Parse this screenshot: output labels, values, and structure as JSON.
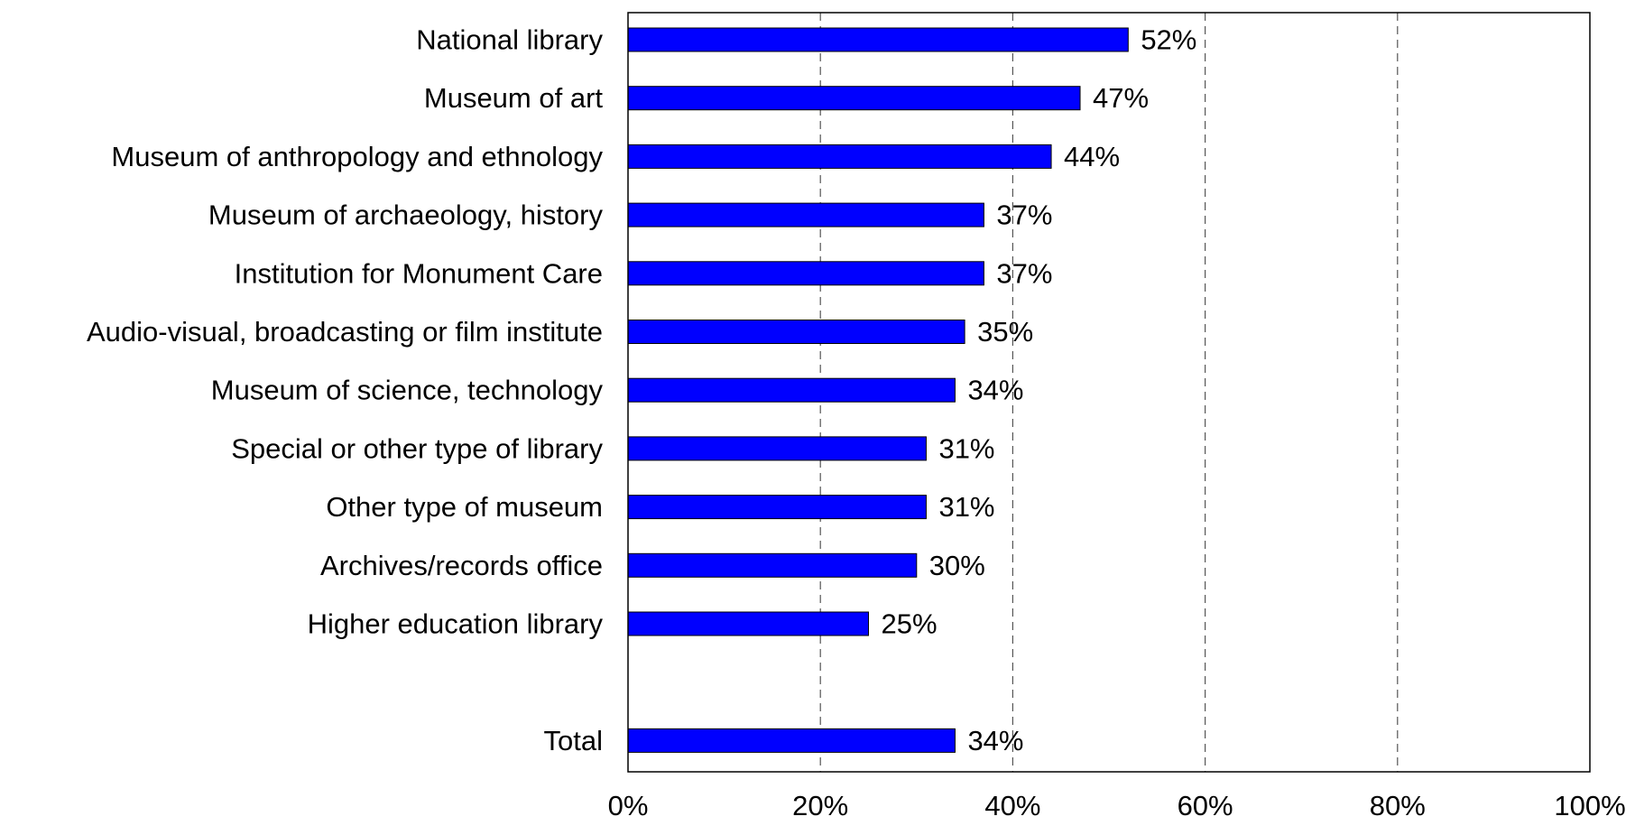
{
  "chart_data": {
    "type": "bar",
    "orientation": "horizontal",
    "categories": [
      "National library",
      "Museum of art",
      "Museum of anthropology and ethnology",
      "Museum of archaeology, history",
      "Institution for Monument Care",
      "Audio-visual, broadcasting or film institute",
      "Museum of science, technology",
      "Special or other type of library",
      "Other type of museum",
      "Archives/records office",
      "Higher education library",
      "",
      "Total"
    ],
    "values": [
      52,
      47,
      44,
      37,
      37,
      35,
      34,
      31,
      31,
      30,
      25,
      null,
      34
    ],
    "data_labels": [
      "52%",
      "47%",
      "44%",
      "37%",
      "37%",
      "35%",
      "34%",
      "31%",
      "31%",
      "30%",
      "25%",
      "",
      "34%"
    ],
    "xlim": [
      0,
      100
    ],
    "x_ticks": [
      0,
      20,
      40,
      60,
      80,
      100
    ],
    "x_tick_labels": [
      "0%",
      "20%",
      "40%",
      "60%",
      "80%",
      "100%"
    ],
    "title": "",
    "xlabel": "",
    "ylabel": "",
    "grid": "vertical dashed",
    "legend": "none",
    "bar_color": "#0000FF",
    "bar_edge_color": "#000000",
    "gridline_color": "#555555"
  }
}
